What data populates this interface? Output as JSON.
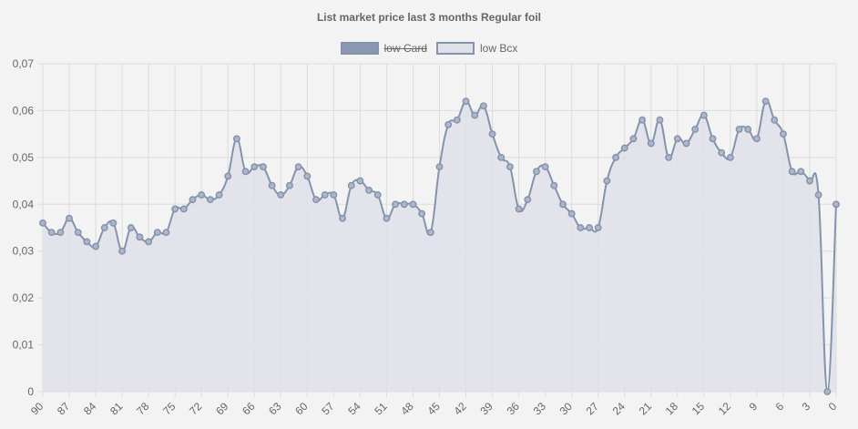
{
  "chart_data": {
    "type": "area",
    "title": "List market price last 3 months Regular foil",
    "legend": [
      {
        "label": "low Card",
        "hidden": true,
        "color": "#8a97b2"
      },
      {
        "label": "low Bcx",
        "hidden": false,
        "color": "#dfe1e9"
      }
    ],
    "x_ticks": [
      "90",
      "87",
      "84",
      "81",
      "78",
      "75",
      "72",
      "69",
      "66",
      "63",
      "60",
      "57",
      "54",
      "51",
      "48",
      "45",
      "42",
      "39",
      "36",
      "33",
      "30",
      "27",
      "24",
      "21",
      "18",
      "15",
      "12",
      "9",
      "6",
      "3",
      "0"
    ],
    "y_ticks": [
      "0",
      "0,01",
      "0,02",
      "0,03",
      "0,04",
      "0,05",
      "0,06",
      "0,07"
    ],
    "ylim": [
      0,
      0.07
    ],
    "x_range": [
      90,
      0
    ],
    "grid": true,
    "line_color": "#8593ad",
    "fill_color": "#dfe1e9",
    "series": [
      {
        "name": "low Bcx",
        "x": [
          90,
          89,
          88,
          87,
          86,
          85,
          84,
          83,
          82,
          81,
          80,
          79,
          78,
          77,
          76,
          75,
          74,
          73,
          72,
          71,
          70,
          69,
          68,
          67,
          66,
          65,
          64,
          63,
          62,
          61,
          60,
          59,
          58,
          57,
          56,
          55,
          54,
          53,
          52,
          51,
          50,
          49,
          48,
          47,
          46,
          45,
          44,
          43,
          42,
          41,
          40,
          39,
          38,
          37,
          36,
          35,
          34,
          33,
          32,
          31,
          30,
          29,
          28,
          27,
          26,
          25,
          24,
          23,
          22,
          21,
          20,
          19,
          18,
          17,
          16,
          15,
          14,
          13,
          12,
          11,
          10,
          9,
          8,
          7,
          6,
          5,
          4,
          3,
          2,
          1,
          0
        ],
        "values": [
          0.036,
          0.034,
          0.034,
          0.037,
          0.034,
          0.032,
          0.031,
          0.035,
          0.036,
          0.03,
          0.035,
          0.033,
          0.032,
          0.034,
          0.034,
          0.039,
          0.039,
          0.041,
          0.042,
          0.041,
          0.042,
          0.046,
          0.054,
          0.047,
          0.048,
          0.048,
          0.044,
          0.042,
          0.044,
          0.048,
          0.046,
          0.041,
          0.042,
          0.042,
          0.037,
          0.044,
          0.045,
          0.043,
          0.042,
          0.037,
          0.04,
          0.04,
          0.04,
          0.038,
          0.034,
          0.048,
          0.057,
          0.058,
          0.062,
          0.059,
          0.061,
          0.055,
          0.05,
          0.048,
          0.039,
          0.041,
          0.047,
          0.048,
          0.044,
          0.04,
          0.038,
          0.035,
          0.035,
          0.035,
          0.045,
          0.05,
          0.052,
          0.054,
          0.058,
          0.053,
          0.058,
          0.05,
          0.054,
          0.053,
          0.056,
          0.059,
          0.054,
          0.051,
          0.05,
          0.056,
          0.056,
          0.054,
          0.062,
          0.058,
          0.055,
          0.047,
          0.047,
          0.045,
          0.042,
          0.0,
          0.04
        ]
      }
    ]
  }
}
